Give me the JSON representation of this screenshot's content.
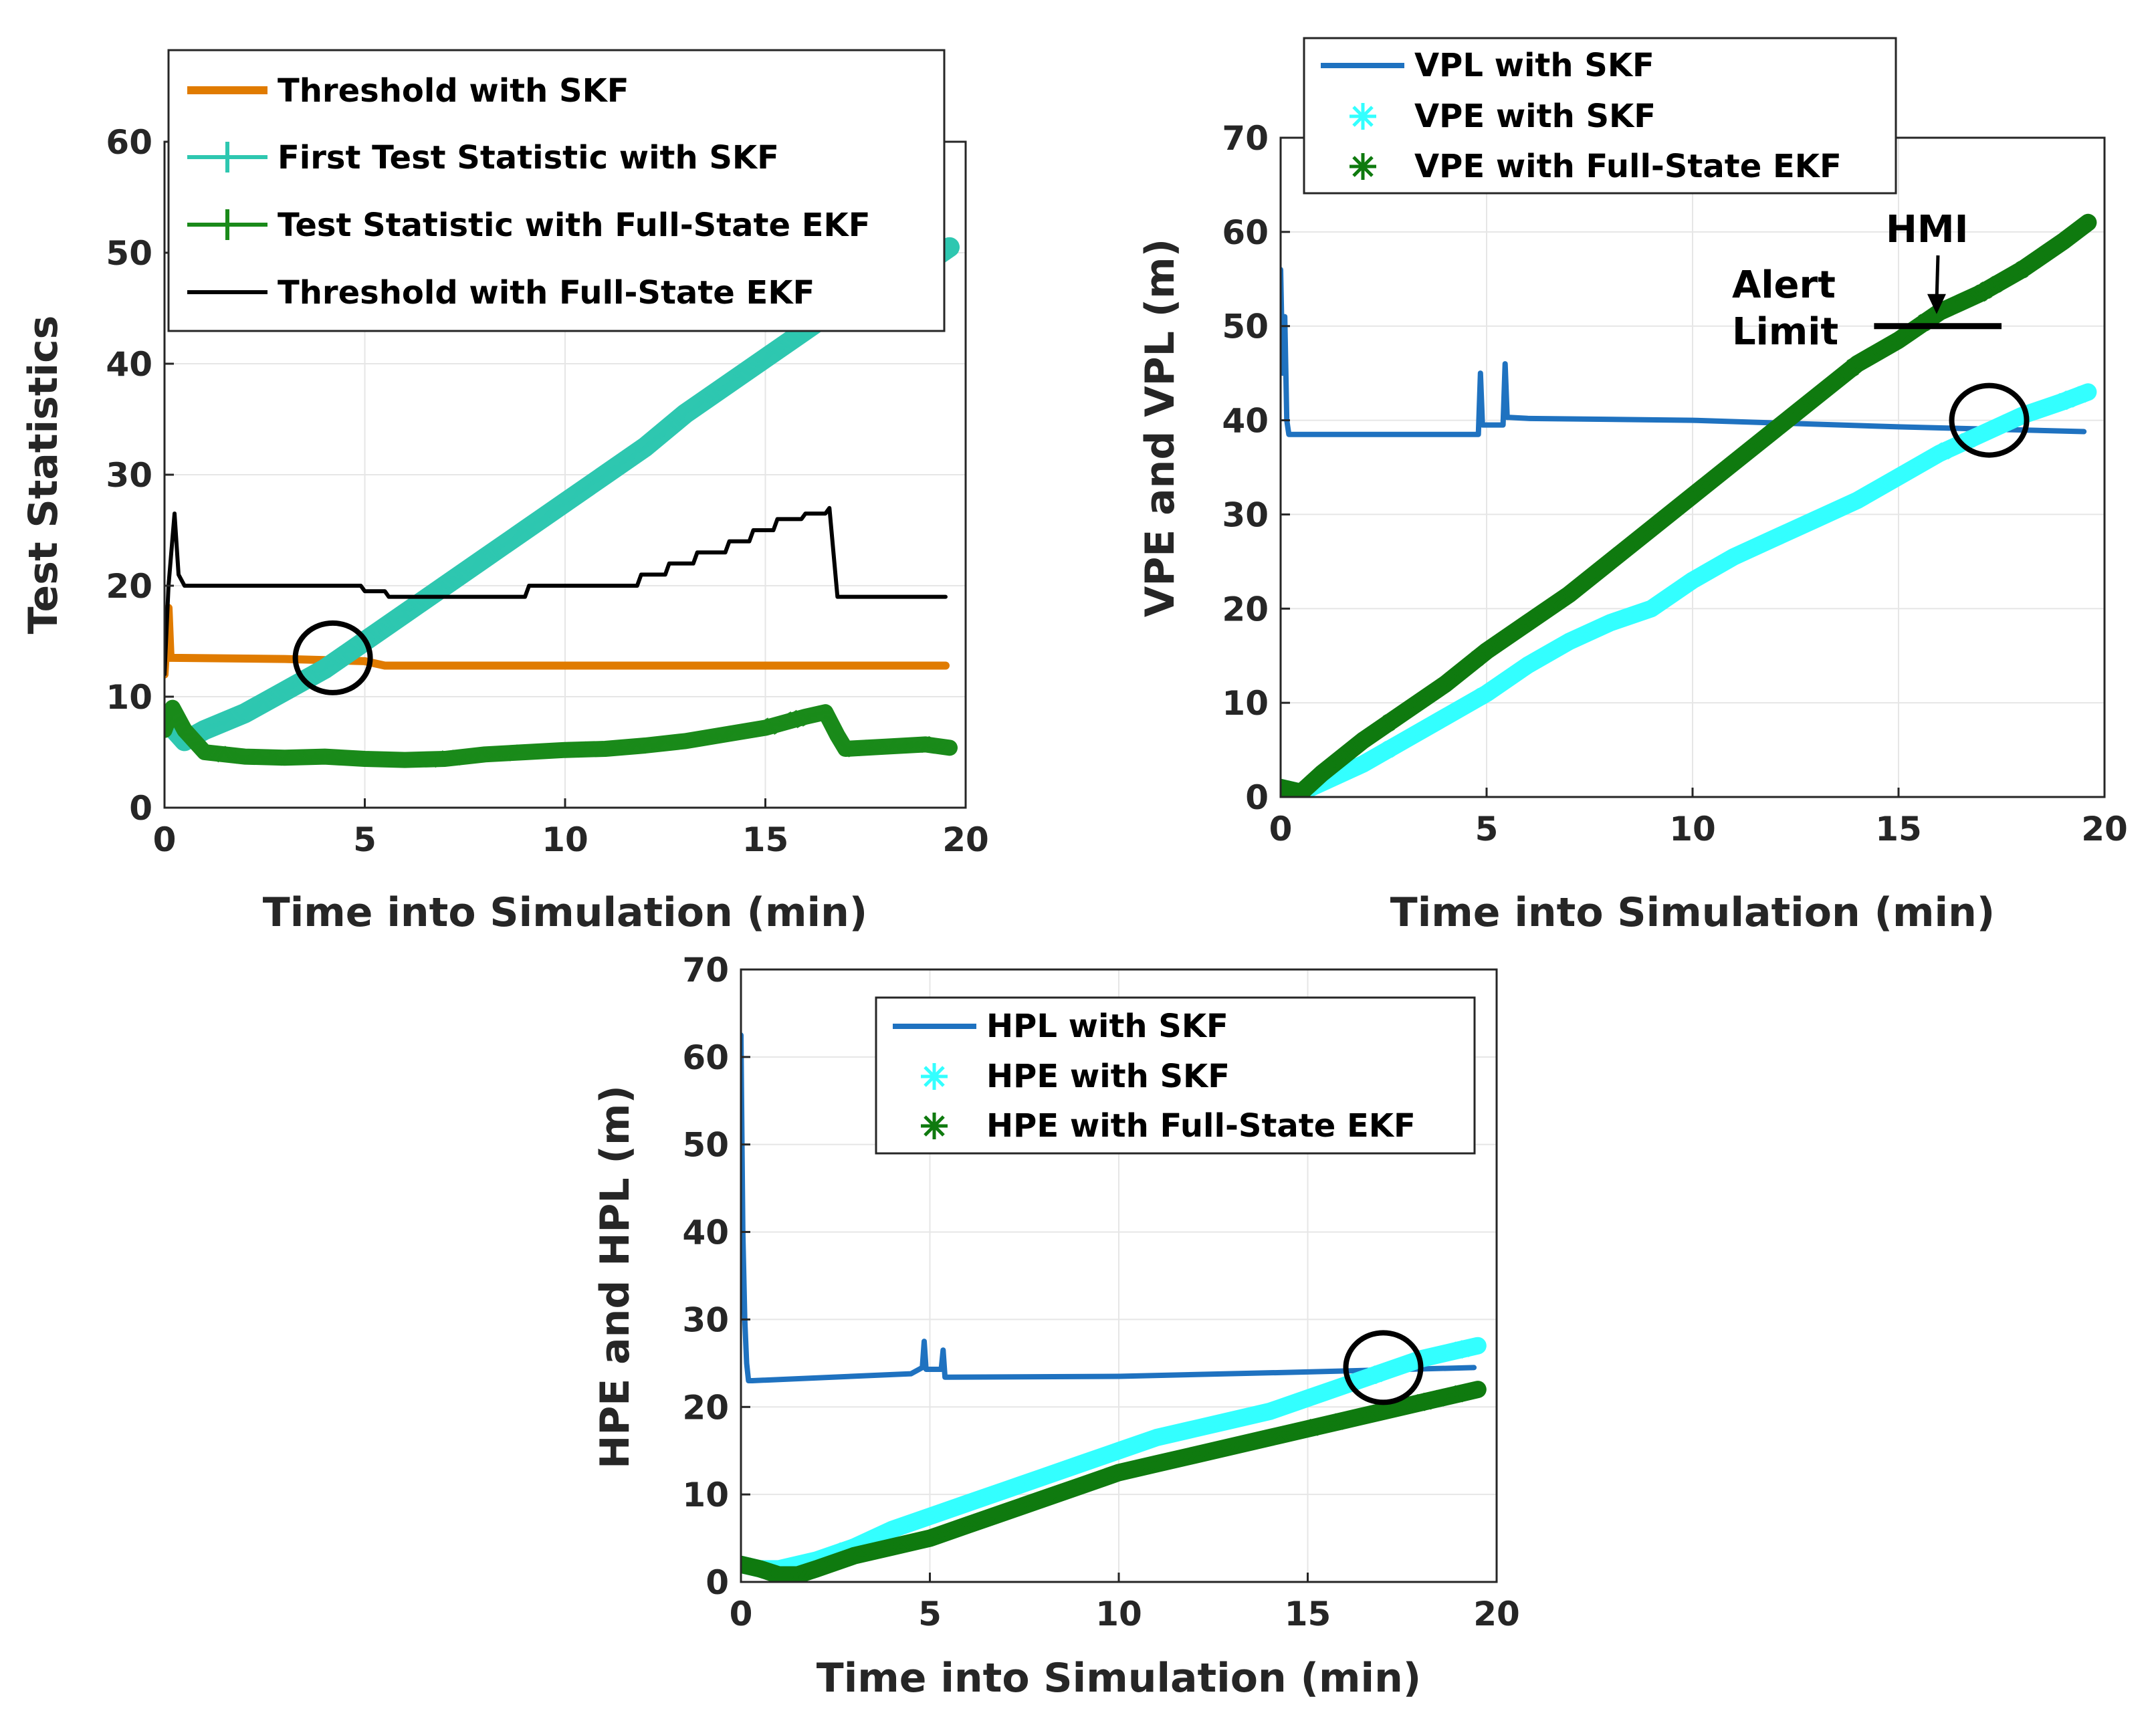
{
  "chart_data": [
    {
      "id": "left",
      "type": "line",
      "xlabel": "Time into Simulation (min)",
      "ylabel": "Test Statistics",
      "xlim": [
        0,
        20
      ],
      "ylim": [
        0,
        60
      ],
      "xticks": [
        0,
        5,
        10,
        15,
        20
      ],
      "yticks": [
        0,
        10,
        20,
        30,
        40,
        50,
        60
      ],
      "grid": true,
      "legend_position": "top",
      "series": [
        {
          "name": "Threshold with SKF",
          "style": "line",
          "color": "#e07b00",
          "width": 12,
          "x": [
            0,
            0.1,
            0.15,
            0.2,
            3,
            5,
            5.5,
            19.5
          ],
          "y": [
            12,
            18,
            13.5,
            13.5,
            13.4,
            13.2,
            12.8,
            12.8
          ]
        },
        {
          "name": "First Test Statistic with SKF",
          "style": "thickline",
          "color": "#2ec7b0",
          "width": 30,
          "marker_color": "#2ec7b0",
          "x": [
            0,
            0.5,
            1,
            2,
            3,
            4,
            5,
            6,
            7,
            8,
            9,
            10,
            11,
            12,
            13,
            14,
            15,
            16,
            17,
            18,
            19,
            19.6
          ],
          "y": [
            8,
            6,
            7,
            8.5,
            10.5,
            12.5,
            15,
            17.5,
            20,
            22.5,
            25,
            27.5,
            30,
            32.5,
            35.5,
            38,
            40.5,
            43,
            45.5,
            47.5,
            49,
            50.5
          ]
        },
        {
          "name": "Test Statistic with Full-State EKF",
          "style": "thickline",
          "color": "#1a8a1a",
          "width": 24,
          "marker_color": "#1a8a1a",
          "x": [
            0,
            0.2,
            0.5,
            1,
            2,
            3,
            4,
            5,
            6,
            7,
            8,
            9,
            10,
            11,
            12,
            13,
            14,
            15,
            16,
            16.5,
            16.8,
            17,
            18,
            19,
            19.6
          ],
          "y": [
            7,
            9,
            7,
            5,
            4.6,
            4.5,
            4.6,
            4.4,
            4.3,
            4.4,
            4.8,
            5,
            5.2,
            5.3,
            5.6,
            6,
            6.6,
            7.2,
            8.2,
            8.6,
            6.5,
            5.3,
            5.5,
            5.7,
            5.4
          ]
        },
        {
          "name": "Threshold with Full-State EKF",
          "style": "step",
          "color": "#000000",
          "width": 6,
          "x": [
            0,
            0.1,
            0.25,
            0.35,
            0.5,
            4.9,
            5.0,
            5.5,
            5.6,
            9.0,
            9.1,
            11.8,
            11.9,
            12.5,
            12.6,
            13.2,
            13.3,
            14.0,
            14.1,
            14.6,
            14.7,
            15.2,
            15.3,
            15.9,
            16.0,
            16.5,
            16.6,
            16.8,
            19.5
          ],
          "y": [
            12,
            20,
            26.5,
            21,
            20,
            20,
            19.5,
            19.5,
            19,
            19,
            20,
            20,
            21,
            21,
            22,
            22,
            23,
            23,
            24,
            24,
            25,
            25,
            26,
            26,
            26.5,
            26.5,
            27,
            19,
            19
          ]
        }
      ],
      "annotations": [
        {
          "type": "circle",
          "x": 4.2,
          "y": 13.5
        }
      ]
    },
    {
      "id": "right",
      "type": "line",
      "xlabel": "Time into Simulation (min)",
      "ylabel": "VPE and VPL (m)",
      "xlim": [
        0,
        20
      ],
      "ylim": [
        0,
        70
      ],
      "xticks": [
        0,
        5,
        10,
        15,
        20
      ],
      "yticks": [
        0,
        10,
        20,
        30,
        40,
        50,
        60,
        70
      ],
      "grid": true,
      "legend_position": "top",
      "series": [
        {
          "name": "VPL with SKF",
          "style": "line",
          "color": "#1f72c0",
          "width": 8,
          "x": [
            0,
            0.05,
            0.1,
            0.15,
            0.2,
            0.25,
            0.3,
            4.8,
            4.85,
            4.9,
            4.95,
            5.4,
            5.45,
            5.5,
            5.55,
            6,
            10,
            15,
            19.5
          ],
          "y": [
            56,
            45,
            51,
            40,
            38.5,
            38.5,
            38.5,
            38.5,
            45,
            39.5,
            39.5,
            39.5,
            46,
            40.3,
            40.3,
            40.2,
            40,
            39.3,
            38.8
          ]
        },
        {
          "name": "VPE with SKF",
          "style": "thickline",
          "color": "#33ffff",
          "width": 26,
          "x": [
            0,
            0.5,
            1,
            2,
            3,
            4,
            5,
            6,
            7,
            8,
            9,
            10,
            11,
            12,
            13,
            14,
            15,
            16,
            17,
            18,
            19,
            19.6
          ],
          "y": [
            1,
            0.5,
            1.5,
            3.5,
            6,
            8.5,
            11,
            14,
            16.5,
            18.5,
            20,
            23,
            25.5,
            27.5,
            29.5,
            31.5,
            34,
            36.5,
            38.5,
            40.5,
            42,
            43
          ]
        },
        {
          "name": "VPE with Full-State EKF",
          "style": "thickline",
          "color": "#0f7a0f",
          "width": 26,
          "x": [
            0,
            0.5,
            1,
            2,
            3,
            4,
            5,
            6,
            7,
            8,
            9,
            10,
            11,
            12,
            13,
            14,
            15,
            15.5,
            16,
            16.5,
            17,
            18,
            19,
            19.6
          ],
          "y": [
            1,
            0.5,
            2.5,
            6,
            9,
            12,
            15.5,
            18.5,
            21.5,
            25,
            28.5,
            32,
            35.5,
            39,
            42.5,
            46,
            48.5,
            50,
            51.5,
            52.5,
            53.5,
            56,
            59,
            61
          ]
        }
      ],
      "annotations": [
        {
          "type": "circle",
          "x": 17.2,
          "y": 40
        },
        {
          "type": "hline",
          "label": "Alert Limit",
          "y": 50,
          "x0": 14,
          "x1": 17.5
        },
        {
          "type": "arrow",
          "label": "HMI",
          "x": 15.6,
          "y": 50
        }
      ]
    },
    {
      "id": "bottom",
      "type": "line",
      "xlabel": "Time into Simulation (min)",
      "ylabel": "HPE and HPL (m)",
      "xlim": [
        0,
        20
      ],
      "ylim": [
        0,
        70
      ],
      "xticks": [
        0,
        5,
        10,
        15,
        20
      ],
      "yticks": [
        0,
        10,
        20,
        30,
        40,
        50,
        60,
        70
      ],
      "grid": true,
      "legend_position": "top-right",
      "series": [
        {
          "name": "HPL with SKF",
          "style": "line",
          "color": "#1f72c0",
          "width": 8,
          "x": [
            0,
            0.05,
            0.1,
            0.15,
            0.2,
            0.3,
            4.5,
            4.8,
            4.85,
            4.9,
            5.3,
            5.35,
            5.4,
            5.5,
            10,
            15,
            19.4
          ],
          "y": [
            62.5,
            40,
            30,
            25,
            23,
            23,
            23.8,
            24.5,
            27.5,
            24.3,
            24.3,
            26.5,
            23.4,
            23.4,
            23.5,
            24,
            24.5
          ]
        },
        {
          "name": "HPE with SKF",
          "style": "thickline",
          "color": "#33ffff",
          "width": 26,
          "x": [
            0,
            0.5,
            1,
            2,
            3,
            4,
            5,
            6,
            7,
            8,
            9,
            10,
            11,
            12,
            13,
            14,
            15,
            16,
            17,
            18,
            19,
            19.5
          ],
          "y": [
            2,
            1.5,
            1.5,
            2.5,
            4,
            6,
            7.5,
            9,
            10.5,
            12,
            13.5,
            15,
            16.5,
            17.5,
            18.5,
            19.5,
            21,
            22.5,
            24,
            25.5,
            26.5,
            27
          ]
        },
        {
          "name": "HPE with Full-State EKF",
          "style": "thickline",
          "color": "#0f7a0f",
          "width": 26,
          "x": [
            0,
            0.5,
            1,
            1.5,
            2,
            3,
            4,
            5,
            6,
            7,
            8,
            9,
            10,
            11,
            12,
            13,
            14,
            15,
            16,
            17,
            18,
            19,
            19.5
          ],
          "y": [
            2,
            1.5,
            0.8,
            0.8,
            1.5,
            3,
            4,
            5,
            6.5,
            8,
            9.5,
            11,
            12.5,
            13.5,
            14.5,
            15.5,
            16.5,
            17.5,
            18.5,
            19.5,
            20.5,
            21.5,
            22
          ]
        }
      ],
      "annotations": [
        {
          "type": "circle",
          "x": 17,
          "y": 24.5
        }
      ]
    }
  ]
}
